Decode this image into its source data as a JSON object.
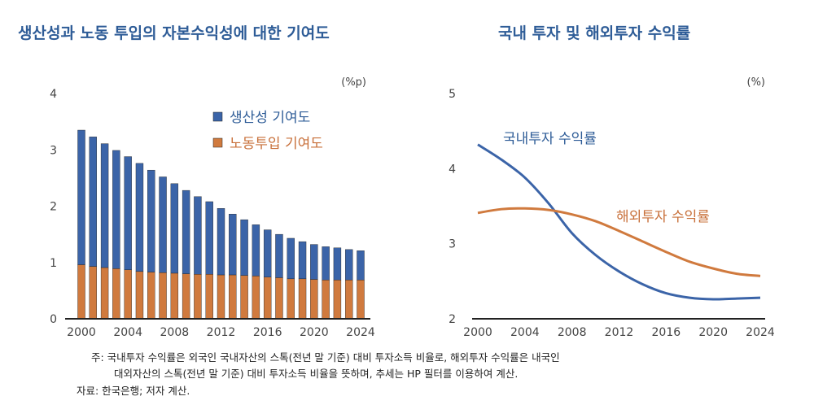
{
  "chart_data": [
    {
      "type": "bar",
      "stacked": true,
      "title": "생산성과 노동 투입의 자본수익성에 대한 기여도",
      "unit": "(%p)",
      "categories": [
        "2000",
        "2001",
        "2002",
        "2003",
        "2004",
        "2005",
        "2006",
        "2007",
        "2008",
        "2009",
        "2010",
        "2011",
        "2012",
        "2013",
        "2014",
        "2015",
        "2016",
        "2017",
        "2018",
        "2019",
        "2020",
        "2021",
        "2022",
        "2023",
        "2024"
      ],
      "x_tick_labels": [
        "2000",
        "2004",
        "2008",
        "2012",
        "2016",
        "2020",
        "2024"
      ],
      "y_tick_labels": [
        "0",
        "1",
        "2",
        "3",
        "4"
      ],
      "ylim": [
        0,
        4
      ],
      "legend_position": "top-right",
      "series": [
        {
          "name": "노동투입 기여도",
          "color": "#d07a3e",
          "values": [
            0.96,
            0.93,
            0.91,
            0.89,
            0.87,
            0.84,
            0.83,
            0.82,
            0.81,
            0.8,
            0.79,
            0.79,
            0.78,
            0.78,
            0.77,
            0.76,
            0.74,
            0.73,
            0.71,
            0.71,
            0.7,
            0.69,
            0.69,
            0.69,
            0.69
          ]
        },
        {
          "name": "생산성 기여도",
          "color": "#3b64a8",
          "values": [
            2.39,
            2.3,
            2.2,
            2.1,
            2.01,
            1.92,
            1.81,
            1.7,
            1.59,
            1.48,
            1.38,
            1.29,
            1.18,
            1.08,
            0.99,
            0.91,
            0.84,
            0.77,
            0.72,
            0.66,
            0.62,
            0.59,
            0.57,
            0.54,
            0.52
          ]
        }
      ]
    },
    {
      "type": "line",
      "title": "국내 투자 및 해외투자 수익률",
      "unit": "(%)",
      "x": [
        2000,
        2002,
        2004,
        2006,
        2008,
        2010,
        2012,
        2014,
        2016,
        2018,
        2020,
        2022,
        2024
      ],
      "x_tick_labels": [
        "2000",
        "2004",
        "2008",
        "2012",
        "2016",
        "2020",
        "2024"
      ],
      "y_tick_labels": [
        "2",
        "3",
        "4",
        "5"
      ],
      "ylim": [
        2,
        5
      ],
      "series": [
        {
          "name": "국내투자 수익률",
          "color": "#3b64a8",
          "values": [
            4.32,
            4.12,
            3.88,
            3.54,
            3.14,
            2.85,
            2.63,
            2.46,
            2.34,
            2.28,
            2.26,
            2.27,
            2.28
          ]
        },
        {
          "name": "해외투자 수익률",
          "color": "#d07a3e",
          "values": [
            3.41,
            3.46,
            3.47,
            3.45,
            3.39,
            3.3,
            3.17,
            3.03,
            2.89,
            2.76,
            2.67,
            2.6,
            2.57
          ]
        }
      ]
    }
  ],
  "notes": {
    "note_line1": "주: 국내투자 수익률은 외국인 국내자산의 스톡(전년 말 기준) 대비 투자소득 비율로, 해외투자 수익률은 내국인",
    "note_line2": "대외자산의 스톡(전년 말 기준) 대비 투자소득 비율을 뜻하며, 추세는 HP 필터를 이용하여 계산.",
    "source": "자료: 한국은행; 저자 계산."
  }
}
